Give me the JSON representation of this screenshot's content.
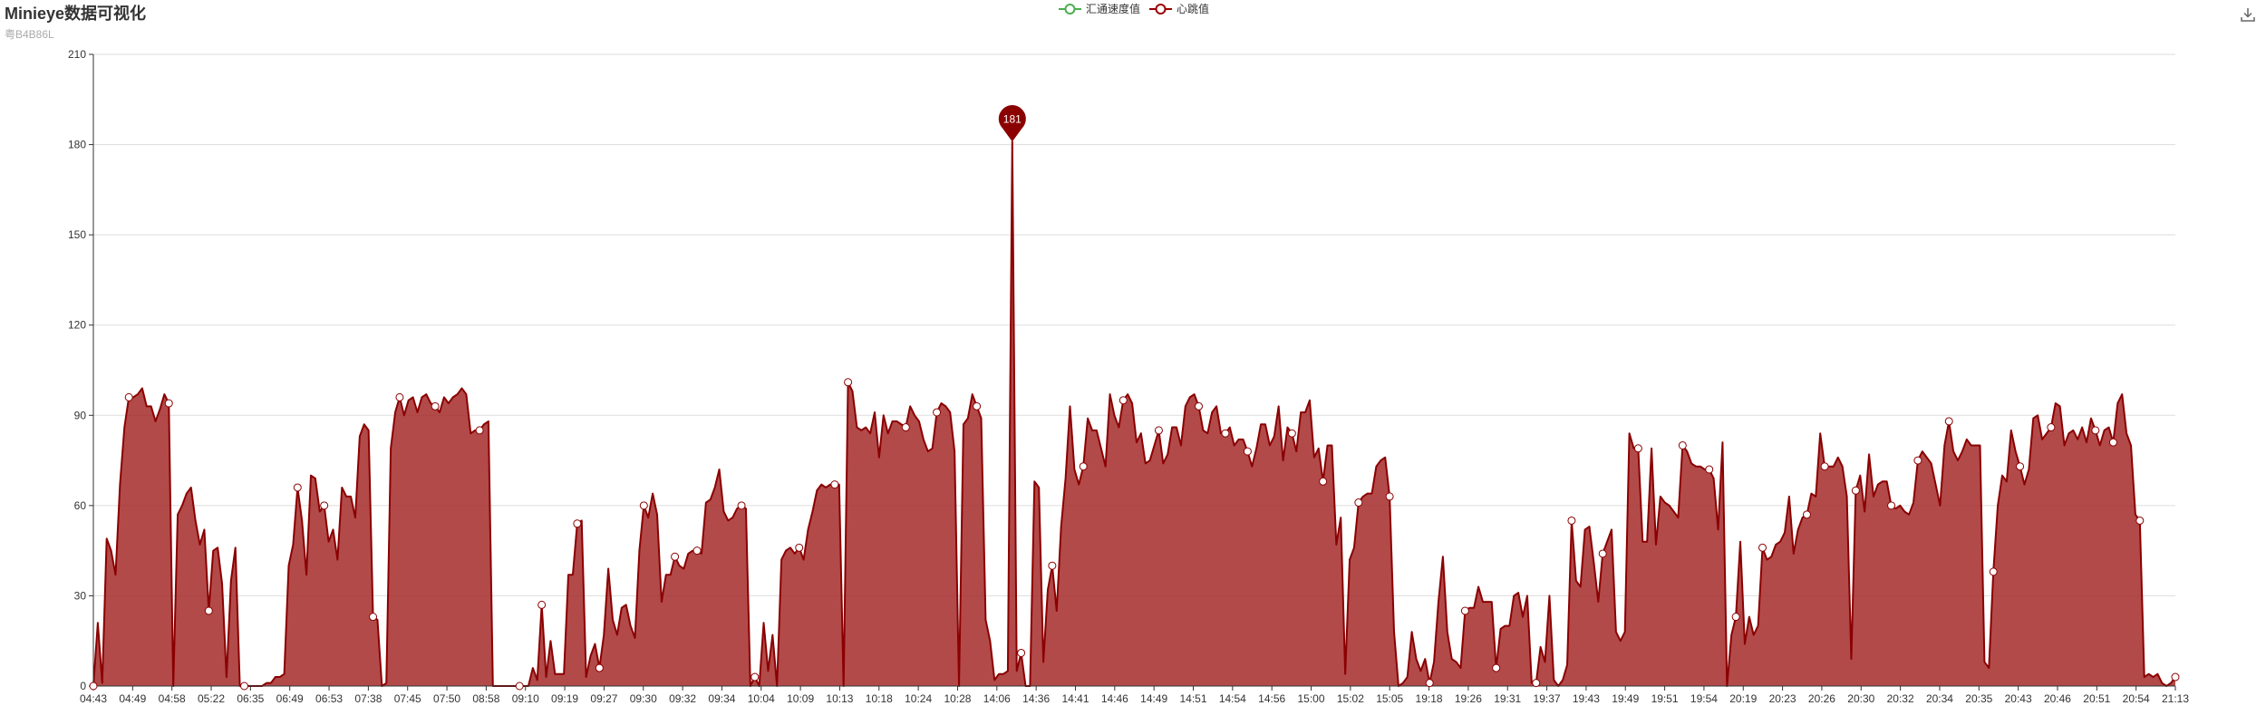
{
  "title": "Minieye数据可视化",
  "subtitle": "粤B4B86L",
  "legend": [
    {
      "name": "汇通速度值",
      "color": "#4caf50"
    },
    {
      "name": "心跳值",
      "color": "#9b0000"
    }
  ],
  "colors": {
    "line": "#8b0000",
    "area": "#a52a2a",
    "grid": "#dddddd",
    "axis": "#333333",
    "marker": "#8b0000"
  },
  "icons": {
    "download": "download-icon"
  },
  "chart_data": {
    "type": "area",
    "title": "Minieye数据可视化",
    "subtitle": "粤B4B86L",
    "xlabel": "",
    "ylabel": "",
    "ylim": [
      0,
      210
    ],
    "yticks": [
      0,
      30,
      60,
      90,
      120,
      150,
      180,
      210
    ],
    "grid": true,
    "legend_position": "top-center",
    "xtick_labels": [
      "04:43",
      "04:49",
      "04:58",
      "05:22",
      "06:35",
      "06:49",
      "06:53",
      "07:38",
      "07:45",
      "07:50",
      "08:58",
      "09:10",
      "09:19",
      "09:27",
      "09:30",
      "09:32",
      "09:34",
      "10:04",
      "10:09",
      "10:13",
      "10:18",
      "10:24",
      "10:28",
      "14:06",
      "14:36",
      "14:41",
      "14:46",
      "14:49",
      "14:51",
      "14:54",
      "14:56",
      "15:00",
      "15:02",
      "15:05",
      "19:18",
      "19:26",
      "19:31",
      "19:37",
      "19:43",
      "19:49",
      "19:51",
      "19:54",
      "20:19",
      "20:23",
      "20:26",
      "20:30",
      "20:32",
      "20:34",
      "20:35",
      "20:43",
      "20:46",
      "20:51",
      "20:54",
      "21:13"
    ],
    "max_marker": {
      "value": 181,
      "label": "181"
    },
    "series": [
      {
        "name": "心跳值",
        "values": [
          0,
          21,
          1,
          49,
          45,
          37,
          67,
          86,
          96,
          96,
          97,
          99,
          93,
          93,
          88,
          92,
          97,
          94,
          0,
          57,
          60,
          64,
          66,
          55,
          47,
          52,
          25,
          45,
          46,
          34,
          3,
          35,
          46,
          0,
          0,
          0,
          0,
          0,
          0,
          1,
          1,
          3,
          3,
          4,
          40,
          47,
          66,
          55,
          37,
          70,
          69,
          58,
          60,
          48,
          52,
          42,
          66,
          63,
          63,
          56,
          83,
          87,
          85,
          23,
          22,
          0,
          1,
          79,
          91,
          96,
          90,
          95,
          96,
          91,
          96,
          97,
          94,
          93,
          91,
          96,
          94,
          96,
          97,
          99,
          97,
          84,
          85,
          85,
          87,
          88,
          0,
          0,
          0,
          0,
          0,
          0,
          0,
          0,
          0,
          6,
          2,
          27,
          3,
          15,
          4,
          4,
          4,
          37,
          37,
          54,
          55,
          3,
          10,
          14,
          6,
          17,
          39,
          22,
          17,
          26,
          27,
          20,
          16,
          45,
          60,
          56,
          64,
          57,
          28,
          37,
          37,
          43,
          40,
          39,
          44,
          45,
          45,
          44,
          61,
          62,
          66,
          72,
          58,
          55,
          56,
          59,
          60,
          59,
          0,
          3,
          0,
          21,
          5,
          17,
          0,
          42,
          45,
          46,
          44,
          46,
          42,
          52,
          58,
          65,
          67,
          66,
          67,
          67,
          67,
          0,
          101,
          98,
          86,
          85,
          86,
          84,
          91,
          76,
          90,
          84,
          88,
          88,
          87,
          86,
          93,
          90,
          88,
          82,
          78,
          79,
          91,
          94,
          93,
          91,
          78,
          0,
          87,
          89,
          97,
          93,
          89,
          22,
          15,
          2,
          4,
          4,
          5,
          181,
          5,
          11,
          0,
          0,
          68,
          66,
          8,
          32,
          40,
          25,
          53,
          69,
          93,
          72,
          67,
          73,
          89,
          85,
          85,
          79,
          73,
          97,
          90,
          86,
          95,
          97,
          94,
          81,
          84,
          74,
          75,
          80,
          85,
          74,
          77,
          86,
          86,
          80,
          93,
          96,
          97,
          93,
          85,
          84,
          91,
          93,
          84,
          84,
          86,
          80,
          82,
          82,
          78,
          73,
          79,
          87,
          87,
          80,
          83,
          93,
          75,
          86,
          84,
          78,
          91,
          91,
          95,
          76,
          79,
          68,
          80,
          80,
          47,
          56,
          4,
          42,
          46,
          61,
          63,
          64,
          64,
          73,
          75,
          76,
          63,
          18,
          0,
          1,
          3,
          18,
          9,
          5,
          9,
          1,
          8,
          28,
          43,
          18,
          9,
          8,
          6,
          25,
          26,
          26,
          33,
          28,
          28,
          28,
          6,
          19,
          20,
          20,
          30,
          31,
          23,
          30,
          1,
          1,
          13,
          8,
          30,
          2,
          0,
          2,
          7,
          55,
          35,
          33,
          52,
          53,
          41,
          28,
          44,
          48,
          52,
          18,
          15,
          18,
          84,
          79,
          79,
          48,
          48,
          79,
          47,
          63,
          61,
          60,
          58,
          56,
          80,
          78,
          74,
          73,
          73,
          72,
          72,
          69,
          52,
          81,
          0,
          17,
          23,
          48,
          14,
          23,
          17,
          20,
          46,
          42,
          43,
          47,
          48,
          51,
          63,
          44,
          52,
          56,
          57,
          64,
          63,
          84,
          73,
          73,
          73,
          76,
          73,
          63,
          9,
          65,
          70,
          58,
          77,
          63,
          67,
          68,
          68,
          60,
          59,
          60,
          58,
          57,
          61,
          75,
          78,
          76,
          74,
          67,
          60,
          80,
          88,
          78,
          75,
          78,
          82,
          80,
          80,
          80,
          8,
          6,
          38,
          60,
          70,
          68,
          85,
          78,
          73,
          67,
          72,
          89,
          90,
          82,
          84,
          86,
          94,
          93,
          80,
          84,
          85,
          82,
          86,
          81,
          89,
          85,
          80,
          85,
          86,
          81,
          94,
          97,
          84,
          80,
          57,
          55,
          3,
          4,
          3,
          4,
          1,
          0,
          1,
          3
        ],
        "sample_points": [
          0,
          8,
          17,
          26,
          34,
          46,
          52,
          63,
          69,
          77,
          87,
          96,
          101,
          109,
          114,
          124,
          131,
          136,
          146,
          149,
          159,
          167,
          170,
          183,
          190,
          199,
          209,
          216,
          223,
          232,
          240,
          249,
          255,
          260,
          270,
          277,
          285,
          292,
          301,
          309,
          316,
          325,
          333,
          340,
          348,
          358,
          364,
          370,
          376,
          386,
          390,
          397,
          405,
          411,
          418,
          428,
          434,
          441,
          451,
          455,
          461,
          469,
          478,
          482,
          491,
          497
        ]
      }
    ]
  }
}
